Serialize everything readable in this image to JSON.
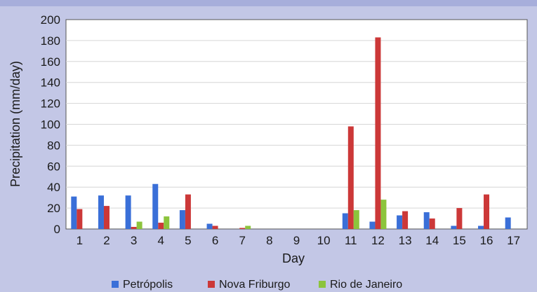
{
  "chart_data": {
    "type": "bar",
    "title": "",
    "xlabel": "Day",
    "ylabel": "Precipitation (mm/day)",
    "ylim": [
      0,
      200
    ],
    "yticks": [
      0,
      20,
      40,
      60,
      80,
      100,
      120,
      140,
      160,
      180,
      200
    ],
    "categories": [
      "1",
      "2",
      "3",
      "4",
      "5",
      "6",
      "7",
      "8",
      "9",
      "10",
      "11",
      "12",
      "13",
      "14",
      "15",
      "16",
      "17"
    ],
    "series": [
      {
        "name": "Petrópolis",
        "color": "#3a6fd8",
        "values": [
          31,
          32,
          32,
          43,
          18,
          5,
          0,
          0,
          0,
          0,
          15,
          7,
          13,
          16,
          3,
          3,
          11
        ]
      },
      {
        "name": "Nova Friburgo",
        "color": "#cc3838",
        "values": [
          19,
          22,
          2,
          6,
          33,
          3,
          1,
          0,
          0,
          0,
          98,
          183,
          17,
          10,
          20,
          33,
          0
        ]
      },
      {
        "name": "Rio de Janeiro",
        "color": "#8cc43c",
        "values": [
          0,
          0,
          7,
          12,
          0,
          0,
          3,
          0,
          0,
          0,
          18,
          28,
          0,
          0,
          0,
          0,
          0
        ]
      }
    ],
    "grid": true,
    "legend_position": "bottom"
  }
}
